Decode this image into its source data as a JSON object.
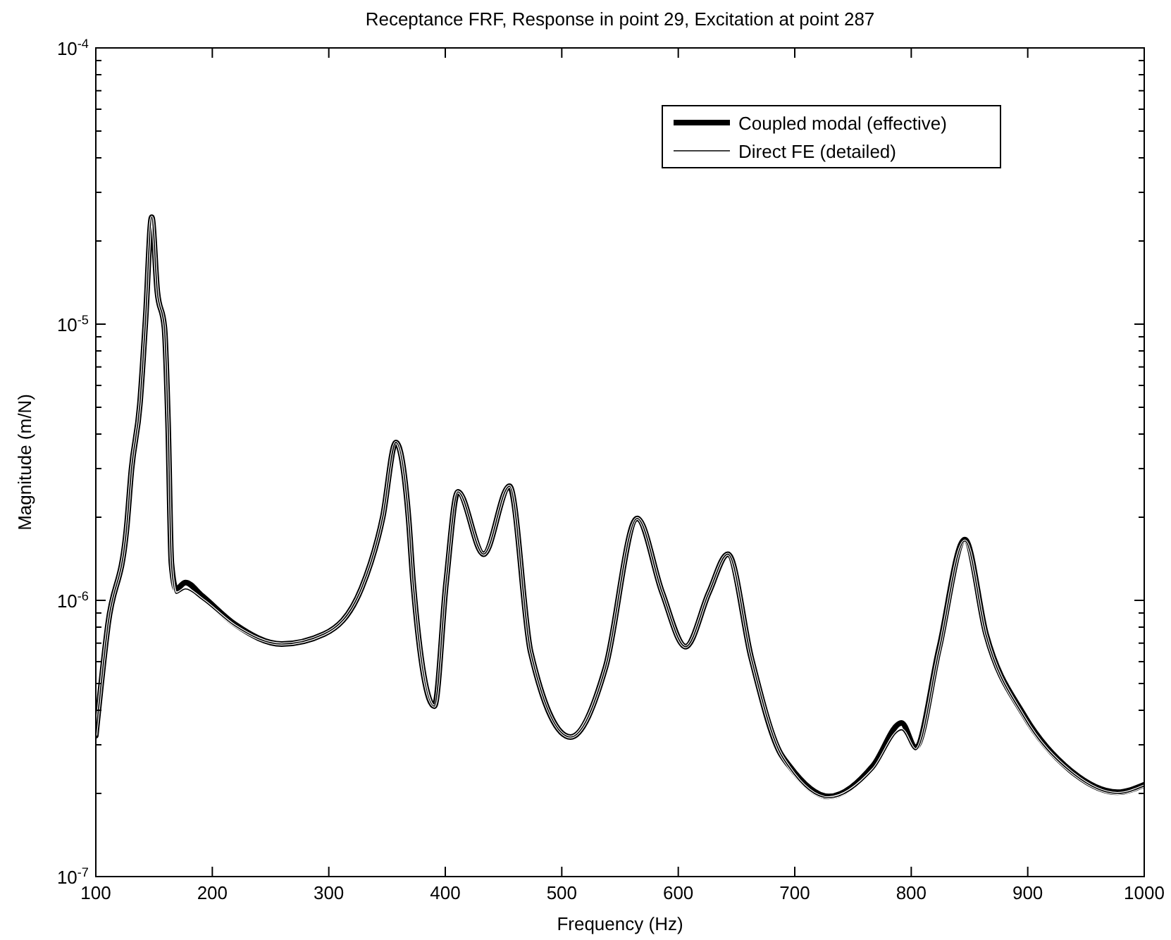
{
  "chart_data": {
    "type": "line",
    "title": "Receptance FRF, Response in point 29, Excitation at point 287",
    "xlabel": "Frequency (Hz)",
    "ylabel": "Magnitude (m/N)",
    "xlim": [
      100,
      1000
    ],
    "xticks": [
      100,
      200,
      300,
      400,
      500,
      600,
      700,
      800,
      900,
      1000
    ],
    "ylim": [
      1e-07,
      0.0001
    ],
    "log": "y",
    "yticks": [
      {
        "value": 1e-07,
        "label": "10$^{-7}$"
      },
      {
        "value": 2e-07,
        "label": null
      },
      {
        "value": 3e-07,
        "label": null
      },
      {
        "value": 4e-07,
        "label": null
      },
      {
        "value": 5e-07,
        "label": null
      },
      {
        "value": 6e-07,
        "label": null
      },
      {
        "value": 7e-07,
        "label": null
      },
      {
        "value": 8e-07,
        "label": null
      },
      {
        "value": 9e-07,
        "label": null
      },
      {
        "value": 1e-06,
        "label": "10$^{-6}$"
      },
      {
        "value": 2e-06,
        "label": null
      },
      {
        "value": 3e-06,
        "label": null
      },
      {
        "value": 4e-06,
        "label": null
      },
      {
        "value": 5e-06,
        "label": null
      },
      {
        "value": 6e-06,
        "label": null
      },
      {
        "value": 7e-06,
        "label": null
      },
      {
        "value": 8e-06,
        "label": null
      },
      {
        "value": 9e-06,
        "label": null
      },
      {
        "value": 1e-05,
        "label": "10$^{-5}$"
      },
      {
        "value": 2e-05,
        "label": null
      },
      {
        "value": 3e-05,
        "label": null
      },
      {
        "value": 4e-05,
        "label": null
      },
      {
        "value": 5e-05,
        "label": null
      },
      {
        "value": 6e-05,
        "label": null
      },
      {
        "value": 7e-05,
        "label": null
      },
      {
        "value": 8e-05,
        "label": null
      },
      {
        "value": 9e-05,
        "label": null
      },
      {
        "value": 0.0001,
        "label": "10$^{-4}$"
      }
    ],
    "grid": false,
    "legend": "top right",
    "x": [
      100,
      110.5,
      126.6,
      130.6,
      137.8,
      142.7,
      148,
      152.8,
      158.9,
      162,
      164.9,
      168.9,
      177,
      191.1,
      219.3,
      259.6,
      295.9,
      328.2,
      346.3,
      357.6,
      368.4,
      372.4,
      390.6,
      400.7,
      410.8,
      432.9,
      455.1,
      473.3,
      507.5,
      537.7,
      564.7,
      586.1,
      606.3,
      626.4,
      642.6,
      662.6,
      686.8,
      694.9,
      729.1,
      767.5,
      791.7,
      803.7,
      823.9,
      846,
      864.2,
      896.5,
      936.8,
      977,
      1000
    ],
    "series": [
      {
        "name": "Coupled modal (effective)",
        "color": "#000000",
        "line_style": "solid",
        "values": [
          3.24e-07,
          8.2e-07,
          1.86e-06,
          2.98e-06,
          5.12e-06,
          1.04e-05,
          2.44e-05,
          1.31e-05,
          9.7e-06,
          4.4e-06,
          1.36e-06,
          1.1e-06,
          1.16e-06,
          1.04e-06,
          8.2e-07,
          6.95e-07,
          7.55e-07,
          1.11e-06,
          2e-06,
          3.73e-06,
          2e-06,
          1.16e-06,
          4.14e-07,
          1.16e-06,
          2.47e-06,
          1.47e-06,
          2.59e-06,
          6.5e-07,
          3.2e-07,
          5.75e-07,
          1.98e-06,
          1.07e-06,
          6.8e-07,
          1.07e-06,
          1.47e-06,
          6.2e-07,
          2.84e-07,
          2.53e-07,
          1.95e-07,
          2.53e-07,
          3.6e-07,
          2.94e-07,
          6.7e-07,
          1.66e-06,
          7.55e-07,
          3.86e-07,
          2.42e-07,
          2.02e-07,
          2.15e-07
        ]
      },
      {
        "name": "Direct FE (detailed)",
        "color": "#000000",
        "line_style": "solid",
        "values": [
          3.24e-07,
          8.2e-07,
          1.86e-06,
          2.98e-06,
          5.12e-06,
          1.04e-05,
          2.44e-05,
          1.31e-05,
          9.7e-06,
          4.4e-06,
          1.36e-06,
          1.06e-06,
          1.1e-06,
          1.01e-06,
          8.1e-07,
          6.95e-07,
          7.55e-07,
          1.11e-06,
          2e-06,
          3.73e-06,
          2e-06,
          1.16e-06,
          4.14e-07,
          1.16e-06,
          2.47e-06,
          1.47e-06,
          2.59e-06,
          6.5e-07,
          3.2e-07,
          5.75e-07,
          1.98e-06,
          1.07e-06,
          6.8e-07,
          1.07e-06,
          1.47e-06,
          6.2e-07,
          2.84e-07,
          2.5e-07,
          1.93e-07,
          2.45e-07,
          3.4e-07,
          2.88e-07,
          6.6e-07,
          1.64e-06,
          7.5e-07,
          3.8e-07,
          2.4e-07,
          2e-07,
          2.13e-07
        ]
      }
    ]
  }
}
